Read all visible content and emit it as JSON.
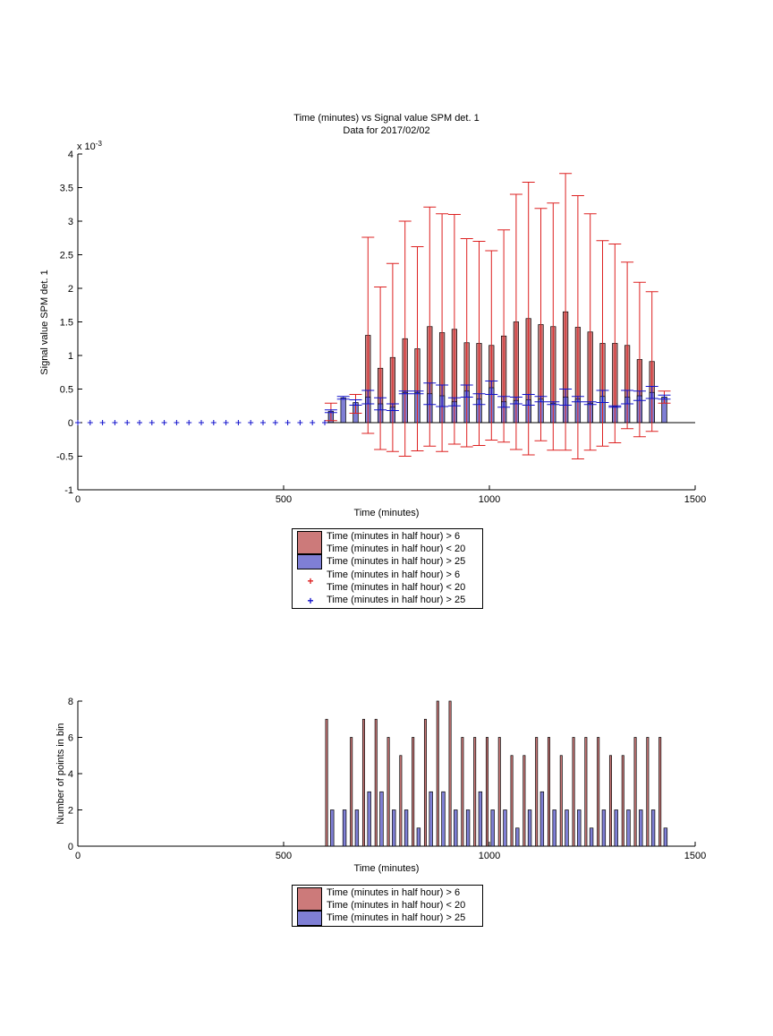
{
  "colors": {
    "red_bar": "#cc7a7a",
    "blue_bar": "#7f7fd5",
    "red_err": "#dd2020",
    "blue_err": "#1010cc",
    "axis": "#000000"
  },
  "chart_data": [
    {
      "type": "bar",
      "title": "Time (minutes) vs Signal value SPM det. 1",
      "subtitle": "Data for 2017/02/02",
      "xlabel": "Time (minutes)",
      "ylabel": "Signal value SPM det. 1",
      "y_multiplier": "x 10",
      "y_exponent": "-3",
      "xlim": [
        0,
        1500
      ],
      "ylim": [
        -1,
        4
      ],
      "xticks": [
        0,
        500,
        1000,
        1500
      ],
      "yticks": [
        -1,
        -0.5,
        0,
        0.5,
        1,
        1.5,
        2,
        2.5,
        3,
        3.5,
        4
      ],
      "grid": false,
      "legend_position": "below",
      "legend": [
        "Time (minutes in half hour) > 6",
        "Time (minutes in half hour) < 20",
        "Time (minutes in half hour) > 25",
        "Time (minutes in half hour) > 6",
        "Time (minutes in half hour) < 20",
        "Time (minutes in half hour) > 25"
      ],
      "zero_markers_x": [
        0,
        30,
        60,
        90,
        120,
        150,
        180,
        210,
        240,
        270,
        300,
        330,
        360,
        390,
        420,
        450,
        480,
        510,
        540,
        570,
        600
      ],
      "red_series": {
        "x": [
          615,
          675,
          705,
          735,
          765,
          795,
          825,
          855,
          885,
          915,
          945,
          975,
          1005,
          1035,
          1065,
          1095,
          1125,
          1155,
          1185,
          1215,
          1245,
          1275,
          1305,
          1335,
          1365,
          1395,
          1425
        ],
        "y": [
          0.16,
          0.28,
          1.3,
          0.81,
          0.97,
          1.25,
          1.1,
          1.43,
          1.34,
          1.39,
          1.19,
          1.18,
          1.15,
          1.29,
          1.5,
          1.55,
          1.46,
          1.43,
          1.65,
          1.42,
          1.35,
          1.18,
          1.18,
          1.15,
          0.94,
          0.91,
          0.38
        ],
        "err": [
          0.13,
          0.14,
          1.46,
          1.21,
          1.4,
          1.75,
          1.52,
          1.78,
          1.77,
          1.71,
          1.55,
          1.52,
          1.41,
          1.58,
          1.9,
          2.03,
          1.73,
          1.84,
          2.06,
          1.96,
          1.76,
          1.53,
          1.48,
          1.24,
          1.15,
          1.04,
          0.09
        ]
      },
      "blue_series": {
        "x": [
          615,
          645,
          675,
          705,
          735,
          765,
          795,
          825,
          855,
          885,
          915,
          945,
          975,
          1005,
          1035,
          1065,
          1095,
          1125,
          1155,
          1185,
          1215,
          1245,
          1275,
          1305,
          1335,
          1365,
          1395,
          1425
        ],
        "y": [
          0.17,
          0.37,
          0.3,
          0.38,
          0.28,
          0.23,
          0.45,
          0.45,
          0.43,
          0.4,
          0.31,
          0.47,
          0.35,
          0.52,
          0.31,
          0.33,
          0.34,
          0.35,
          0.29,
          0.38,
          0.35,
          0.29,
          0.39,
          0.24,
          0.38,
          0.4,
          0.45,
          0.38
        ],
        "err": [
          0.02,
          0.02,
          0.04,
          0.1,
          0.09,
          0.05,
          0.02,
          0.02,
          0.16,
          0.16,
          0.06,
          0.09,
          0.08,
          0.1,
          0.08,
          0.05,
          0.08,
          0.04,
          0.02,
          0.12,
          0.04,
          0.02,
          0.09,
          0.01,
          0.1,
          0.07,
          0.09,
          0.03
        ]
      }
    },
    {
      "type": "bar",
      "xlabel": "Time (minutes)",
      "ylabel": "Number of points in bin",
      "xlim": [
        0,
        1500
      ],
      "ylim": [
        0,
        8
      ],
      "xticks": [
        0,
        500,
        1000,
        1500
      ],
      "yticks": [
        0,
        2,
        4,
        6,
        8
      ],
      "grid": false,
      "legend_position": "below",
      "legend": [
        "Time (minutes in half hour) > 6",
        "Time (minutes in half hour) < 20",
        "Time (minutes in half hour) > 25"
      ],
      "red_counts": {
        "x": [
          615,
          675,
          705,
          735,
          765,
          795,
          825,
          855,
          885,
          915,
          945,
          975,
          1005,
          1035,
          1065,
          1095,
          1125,
          1155,
          1185,
          1215,
          1245,
          1275,
          1305,
          1335,
          1365,
          1395,
          1425
        ],
        "y": [
          7,
          6,
          7,
          7,
          6,
          5,
          6,
          7,
          8,
          8,
          6,
          6,
          6,
          6,
          5,
          5,
          6,
          6,
          5,
          6,
          6,
          6,
          5,
          5,
          6,
          6,
          6
        ]
      },
      "blue_counts": {
        "x": [
          615,
          645,
          675,
          705,
          735,
          765,
          795,
          825,
          855,
          885,
          915,
          945,
          975,
          1005,
          1035,
          1065,
          1095,
          1125,
          1155,
          1185,
          1215,
          1245,
          1275,
          1305,
          1335,
          1365,
          1395,
          1425
        ],
        "y": [
          2,
          2,
          2,
          3,
          3,
          2,
          2,
          1,
          3,
          3,
          2,
          2,
          3,
          2,
          2,
          1,
          2,
          3,
          2,
          2,
          2,
          1,
          2,
          2,
          2,
          2,
          2,
          1
        ]
      }
    }
  ]
}
